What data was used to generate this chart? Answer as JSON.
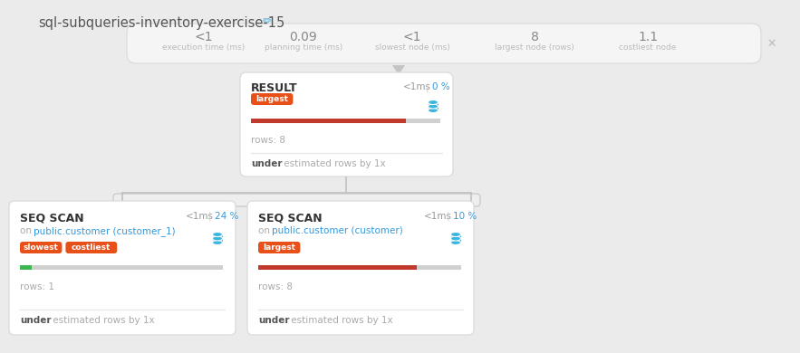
{
  "title": "sql-subqueries-inventory-exercise-15",
  "bg_color": "#ebebeb",
  "stats": [
    {
      "value": "<1",
      "label": "execution time (ms)"
    },
    {
      "value": "0.09",
      "label": "planning time (ms)"
    },
    {
      "value": "<1",
      "label": "slowest node (ms)"
    },
    {
      "value": "8",
      "label": "largest node (rows)"
    },
    {
      "value": "1.1",
      "label": "costliest node"
    }
  ],
  "result_node": {
    "title": "RESULT",
    "time": "<1ms",
    "pct": "0 %",
    "badge": "largest",
    "bar_fill": 0.82,
    "rows_text": "rows: 8",
    "under_text": "under estimated rows by 1x"
  },
  "seq_scan_left": {
    "title": "SEQ SCAN",
    "time": "<1ms",
    "pct": "24 %",
    "subtitle": "on public.customer (customer_1)",
    "badges": [
      "slowest",
      "costliest"
    ],
    "bar_fill": 0.06,
    "bar_color": "#3db551",
    "rows_text": "rows: 1",
    "under_text": "under estimated rows by 1x"
  },
  "seq_scan_right": {
    "title": "SEQ SCAN",
    "time": "<1ms",
    "pct": "10 %",
    "subtitle": "on public.customer (customer)",
    "badges": [
      "largest"
    ],
    "bar_fill": 0.78,
    "bar_color": "#c0392b",
    "rows_text": "rows: 8",
    "under_text": "under estimated rows by 1x"
  },
  "badge_color": "#e8501a",
  "red_bar_color": "#c0392b",
  "gray_bar_color": "#d0d0d0",
  "db_icon_color": "#3ab5e0",
  "text_dark": "#444444",
  "text_gray": "#aaaaaa",
  "text_blue_label": "#aaaaaa",
  "text_stat_value": "#999999",
  "text_blue": "#3498db",
  "close_color": "#bbbbbb",
  "pencil_color": "#5ab4e0",
  "stats_bg": "#f5f5f5",
  "stats_border": "#dddddd",
  "card_bg": "#ffffff",
  "card_border": "#dddddd"
}
